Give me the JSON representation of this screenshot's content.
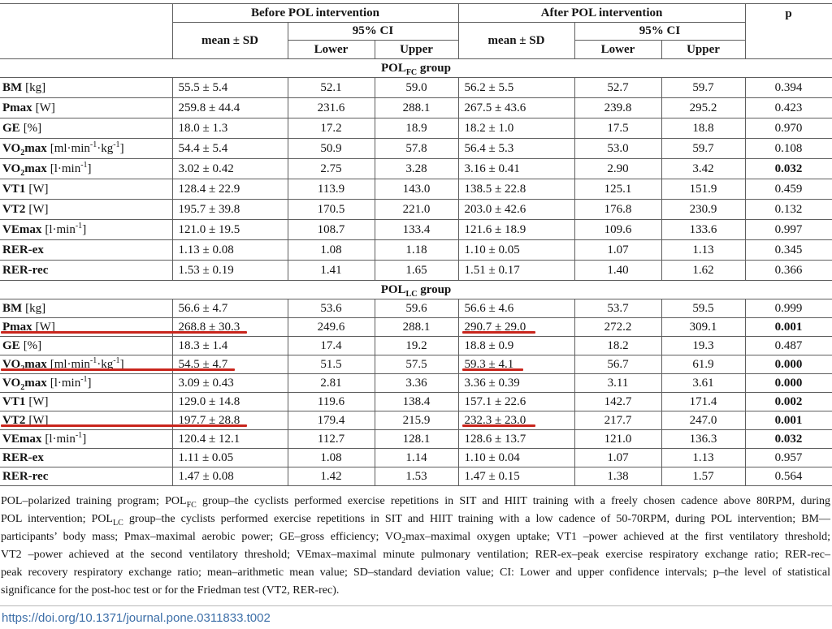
{
  "colors": {
    "link": "#3d6fa8",
    "annotation_red": "#c9251c",
    "border": "#5e5e5e"
  },
  "table": {
    "header": {
      "before_label": "Before POL intervention",
      "after_label": "After POL intervention",
      "p_label": "p",
      "mean_sd_label": "mean ± SD",
      "ci_label": "95% CI",
      "lower_label": "Lower",
      "upper_label": "Upper"
    },
    "groups": [
      {
        "title": "POL~FC~ group",
        "rows": [
          {
            "name": "BM",
            "unit": "[kg]",
            "b_mean": "55.5 ± 5.4",
            "b_lower": "52.1",
            "b_upper": "59.0",
            "a_mean": "56.2 ± 5.5",
            "a_lower": "52.7",
            "a_upper": "59.7",
            "p": "0.394",
            "p_bold": false,
            "red_before": false,
            "red_after": false
          },
          {
            "name": "Pmax",
            "unit": "[W]",
            "b_mean": "259.8 ± 44.4",
            "b_lower": "231.6",
            "b_upper": "288.1",
            "a_mean": "267.5 ± 43.6",
            "a_lower": "239.8",
            "a_upper": "295.2",
            "p": "0.423",
            "p_bold": false,
            "red_before": false,
            "red_after": false
          },
          {
            "name": "GE",
            "unit": "[%]",
            "b_mean": "18.0 ± 1.3",
            "b_lower": "17.2",
            "b_upper": "18.9",
            "a_mean": "18.2 ± 1.0",
            "a_lower": "17.5",
            "a_upper": "18.8",
            "p": "0.970",
            "p_bold": false,
            "red_before": false,
            "red_after": false
          },
          {
            "name": "VO~2~max",
            "unit": "[ml·min^-1^·kg^-1^]",
            "b_mean": "54.4 ± 5.4",
            "b_lower": "50.9",
            "b_upper": "57.8",
            "a_mean": "56.4 ± 5.3",
            "a_lower": "53.0",
            "a_upper": "59.7",
            "p": "0.108",
            "p_bold": false,
            "red_before": false,
            "red_after": false
          },
          {
            "name": "VO~2~max",
            "unit": "[l·min^-1^]",
            "b_mean": "3.02 ± 0.42",
            "b_lower": "2.75",
            "b_upper": "3.28",
            "a_mean": "3.16 ± 0.41",
            "a_lower": "2.90",
            "a_upper": "3.42",
            "p": "0.032",
            "p_bold": true,
            "red_before": false,
            "red_after": false
          },
          {
            "name": "VT1",
            "unit": "[W]",
            "b_mean": "128.4 ± 22.9",
            "b_lower": "113.9",
            "b_upper": "143.0",
            "a_mean": "138.5 ± 22.8",
            "a_lower": "125.1",
            "a_upper": "151.9",
            "p": "0.459",
            "p_bold": false,
            "red_before": false,
            "red_after": false
          },
          {
            "name": "VT2",
            "unit": "[W]",
            "b_mean": "195.7 ± 39.8",
            "b_lower": "170.5",
            "b_upper": "221.0",
            "a_mean": "203.0 ± 42.6",
            "a_lower": "176.8",
            "a_upper": "230.9",
            "p": "0.132",
            "p_bold": false,
            "red_before": false,
            "red_after": false
          },
          {
            "name": "VEmax",
            "unit": "[l·min^-1^]",
            "b_mean": "121.0 ± 19.5",
            "b_lower": "108.7",
            "b_upper": "133.4",
            "a_mean": "121.6 ± 18.9",
            "a_lower": "109.6",
            "a_upper": "133.6",
            "p": "0.997",
            "p_bold": false,
            "red_before": false,
            "red_after": false
          },
          {
            "name": "RER-ex",
            "unit": "",
            "b_mean": "1.13 ± 0.08",
            "b_lower": "1.08",
            "b_upper": "1.18",
            "a_mean": "1.10 ± 0.05",
            "a_lower": "1.07",
            "a_upper": "1.13",
            "p": "0.345",
            "p_bold": false,
            "red_before": false,
            "red_after": false
          },
          {
            "name": "RER-rec",
            "unit": "",
            "b_mean": "1.53 ± 0.19",
            "b_lower": "1.41",
            "b_upper": "1.65",
            "a_mean": "1.51 ± 0.17",
            "a_lower": "1.40",
            "a_upper": "1.62",
            "p": "0.366",
            "p_bold": false,
            "red_before": false,
            "red_after": false
          }
        ]
      },
      {
        "title": "POL~LC~ group",
        "rows": [
          {
            "name": "BM",
            "unit": "[kg]",
            "b_mean": "56.6 ± 4.7",
            "b_lower": "53.6",
            "b_upper": "59.6",
            "a_mean": "56.6 ± 4.6",
            "a_lower": "53.7",
            "a_upper": "59.5",
            "p": "0.999",
            "p_bold": false,
            "red_before": false,
            "red_after": false
          },
          {
            "name": "Pmax",
            "unit": "[W]",
            "b_mean": "268.8 ± 30.3",
            "b_lower": "249.6",
            "b_upper": "288.1",
            "a_mean": "290.7 ± 29.0",
            "a_lower": "272.2",
            "a_upper": "309.1",
            "p": "0.001",
            "p_bold": true,
            "red_before": true,
            "red_after": true
          },
          {
            "name": "GE",
            "unit": "[%]",
            "b_mean": "18.3 ± 1.4",
            "b_lower": "17.4",
            "b_upper": "19.2",
            "a_mean": "18.8 ± 0.9",
            "a_lower": "18.2",
            "a_upper": "19.3",
            "p": "0.487",
            "p_bold": false,
            "red_before": false,
            "red_after": false
          },
          {
            "name": "VO~2~max",
            "unit": "[ml·min^-1^·kg^-1^]",
            "b_mean": "54.5 ± 4.7",
            "b_lower": "51.5",
            "b_upper": "57.5",
            "a_mean": "59.3 ± 4.1",
            "a_lower": "56.7",
            "a_upper": "61.9",
            "p": "0.000",
            "p_bold": true,
            "red_before": true,
            "red_after": true
          },
          {
            "name": "VO~2~max",
            "unit": "[l·min^-1^]",
            "b_mean": "3.09 ± 0.43",
            "b_lower": "2.81",
            "b_upper": "3.36",
            "a_mean": "3.36 ± 0.39",
            "a_lower": "3.11",
            "a_upper": "3.61",
            "p": "0.000",
            "p_bold": true,
            "red_before": false,
            "red_after": false
          },
          {
            "name": "VT1",
            "unit": "[W]",
            "b_mean": "129.0 ± 14.8",
            "b_lower": "119.6",
            "b_upper": "138.4",
            "a_mean": "157.1 ± 22.6",
            "a_lower": "142.7",
            "a_upper": "171.4",
            "p": "0.002",
            "p_bold": true,
            "red_before": false,
            "red_after": false
          },
          {
            "name": "VT2",
            "unit": "[W]",
            "b_mean": "197.7 ± 28.8",
            "b_lower": "179.4",
            "b_upper": "215.9",
            "a_mean": "232.3 ± 23.0",
            "a_lower": "217.7",
            "a_upper": "247.0",
            "p": "0.001",
            "p_bold": true,
            "red_before": true,
            "red_after": true
          },
          {
            "name": "VEmax",
            "unit": "[l·min^-1^]",
            "b_mean": "120.4 ± 12.1",
            "b_lower": "112.7",
            "b_upper": "128.1",
            "a_mean": "128.6 ± 13.7",
            "a_lower": "121.0",
            "a_upper": "136.3",
            "p": "0.032",
            "p_bold": true,
            "red_before": false,
            "red_after": false
          },
          {
            "name": "RER-ex",
            "unit": "",
            "b_mean": "1.11 ± 0.05",
            "b_lower": "1.08",
            "b_upper": "1.14",
            "a_mean": "1.10 ± 0.04",
            "a_lower": "1.07",
            "a_upper": "1.13",
            "p": "0.957",
            "p_bold": false,
            "red_before": false,
            "red_after": false
          },
          {
            "name": "RER-rec",
            "unit": "",
            "b_mean": "1.47 ± 0.08",
            "b_lower": "1.42",
            "b_upper": "1.53",
            "a_mean": "1.47 ± 0.15",
            "a_lower": "1.38",
            "a_upper": "1.57",
            "p": "0.564",
            "p_bold": false,
            "red_before": false,
            "red_after": false
          }
        ]
      }
    ]
  },
  "footnote_lines": [
    "POL–polarized training program; POL~FC~ group–the cyclists performed exercise repetitions in SIT and HIIT training with a freely chosen cadence above 80RPM, during",
    "POL intervention; POL~LC~ group–the cyclists performed exercise repetitions in SIT and HIIT training with a low cadence of 50-70RPM, during POL intervention; BM—",
    "participants’ body mass; Pmax–maximal aerobic power; GE–gross efficiency; VO~2~max–maximal oxygen uptake; VT1 –power achieved at the first ventilatory threshold;",
    "VT2 –power achieved at the second ventilatory threshold; VEmax–maximal minute pulmonary ventilation; RER-ex–peak exercise respiratory exchange ratio; RER-rec–",
    "peak recovery respiratory exchange ratio; mean–arithmetic mean value; SD–standard deviation value; CI: Lower and upper confidence intervals; p–the level of statistical",
    "significance for the post-hoc test or for the Friedman test (VT2, RER-rec)."
  ],
  "doi": "https://doi.org/10.1371/journal.pone.0311833.t002"
}
